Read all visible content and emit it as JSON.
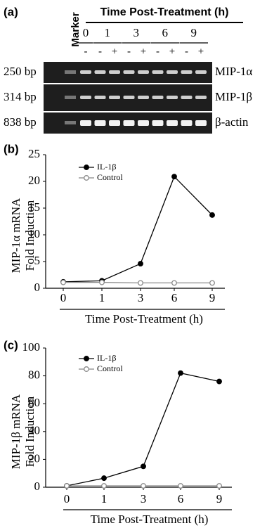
{
  "gel": {
    "panel_label": "(a)",
    "marker_label": "Marker",
    "title": "Time Post-Treatment (h)",
    "timepoints": [
      "0",
      "1",
      "3",
      "6",
      "9"
    ],
    "lane_labels": [
      "-",
      "-",
      "+",
      "-",
      "+",
      "-",
      "+",
      "-",
      "+"
    ],
    "rows": [
      {
        "size": "250 bp",
        "gene": "MIP-1α"
      },
      {
        "size": "314 bp",
        "gene": "MIP-1β"
      },
      {
        "size": "838 bp",
        "gene": "β-actin"
      }
    ]
  },
  "chart_data": [
    {
      "type": "line",
      "panel_label": "(b)",
      "y_label": [
        "MIP-1α mRNA",
        "Fold Induction"
      ],
      "x_label": "Time Post-Treatment (h)",
      "categories": [
        "0",
        "1",
        "3",
        "6",
        "9"
      ],
      "ylim": [
        0,
        25
      ],
      "yticks": [
        0,
        5,
        10,
        15,
        20,
        25
      ],
      "series": [
        {
          "name": "IL-1β",
          "color": "#000000",
          "values": [
            1.2,
            1.4,
            4.6,
            20.9,
            13.7
          ]
        },
        {
          "name": "Control",
          "color": "#888888",
          "values": [
            1.1,
            1.1,
            1.0,
            1.0,
            1.0
          ]
        }
      ]
    },
    {
      "type": "line",
      "panel_label": "(c)",
      "y_label": [
        "MIP-1β mRNA",
        "Fold Induction"
      ],
      "x_label": "Time Post-Treatment (h)",
      "categories": [
        "0",
        "1",
        "3",
        "6",
        "9"
      ],
      "ylim": [
        0,
        100
      ],
      "yticks": [
        0,
        20,
        40,
        60,
        80,
        100
      ],
      "series": [
        {
          "name": "IL-1β",
          "color": "#000000",
          "values": [
            1,
            6.5,
            15,
            82,
            76
          ]
        },
        {
          "name": "Control",
          "color": "#888888",
          "values": [
            1,
            1,
            1,
            1,
            1
          ]
        }
      ]
    }
  ]
}
